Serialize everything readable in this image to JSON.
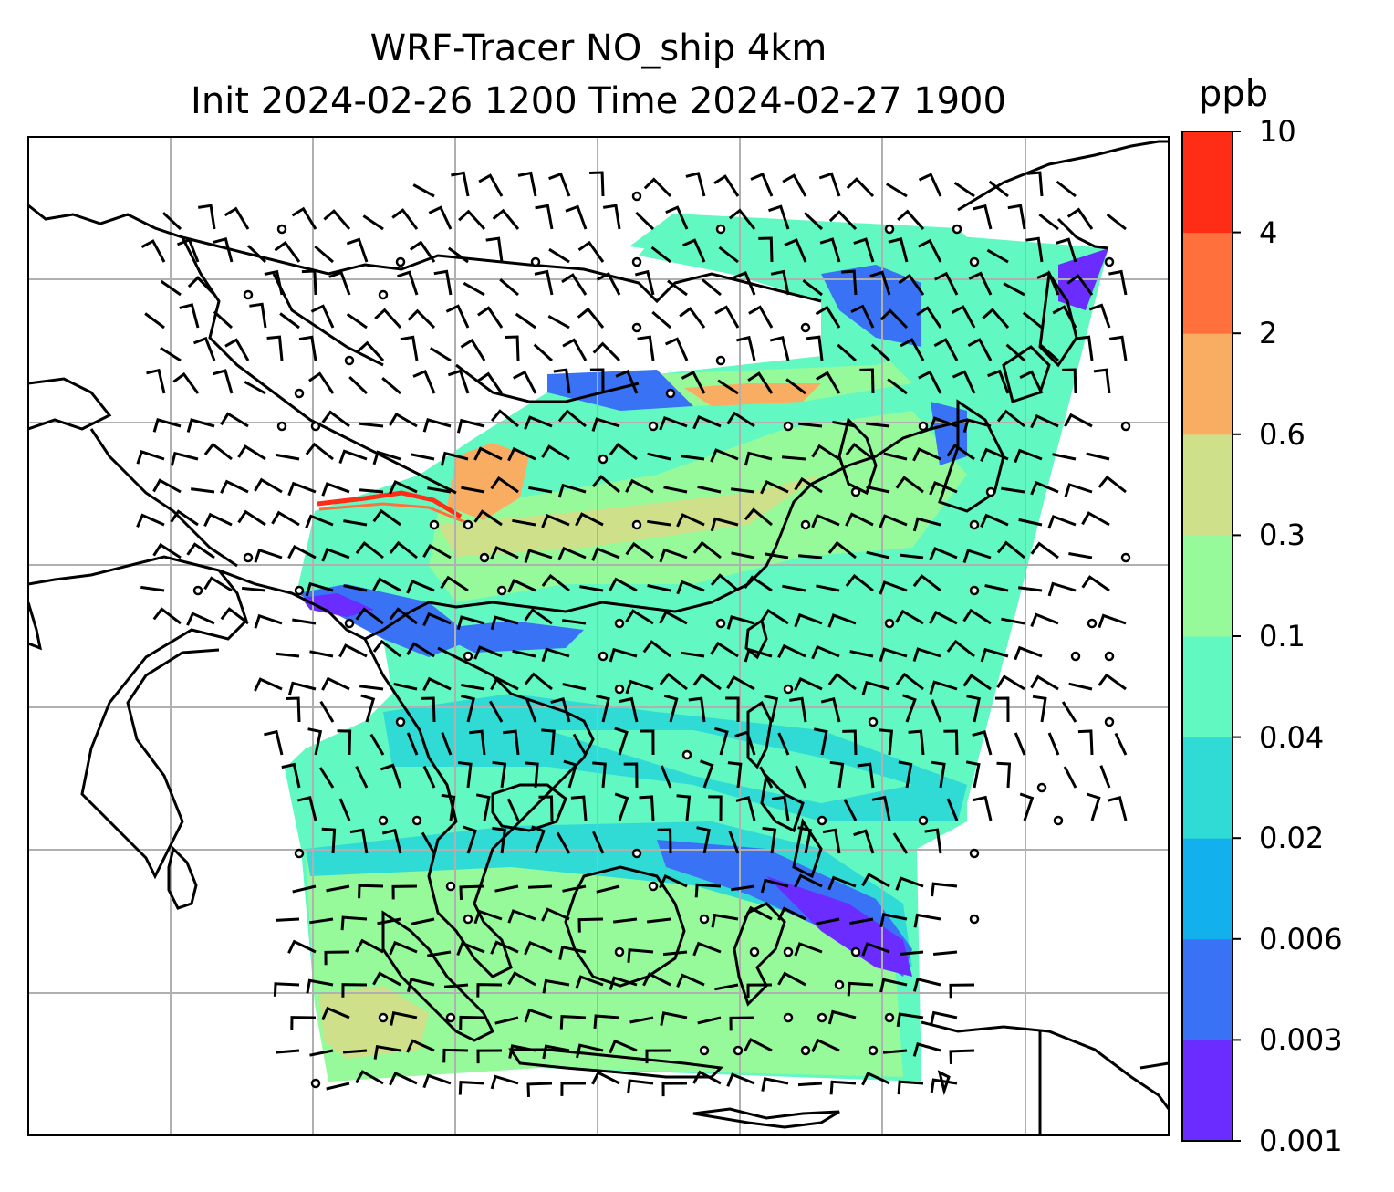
{
  "title": {
    "line1": "WRF-Tracer NO_ship 4km",
    "line2": "Init 2024-02-26 1200 Time 2024-02-27 1900"
  },
  "colorbar": {
    "unit": "ppb",
    "levels": [
      "0.001",
      "0.003",
      "0.006",
      "0.02",
      "0.04",
      "0.1",
      "0.3",
      "0.6",
      "2",
      "4",
      "10"
    ],
    "colors": [
      "#6a2cff",
      "#3a72f6",
      "#12b0ec",
      "#30dbd6",
      "#62f8c2",
      "#96f99a",
      "#cfe08a",
      "#f9ad62",
      "#ff703c",
      "#ff2d16"
    ]
  },
  "map": {
    "field": "NO_ship",
    "resolution": "4km",
    "land_color": "#ffffff",
    "grid_color": "#b0b0b0",
    "coastline_color": "#000000"
  }
}
